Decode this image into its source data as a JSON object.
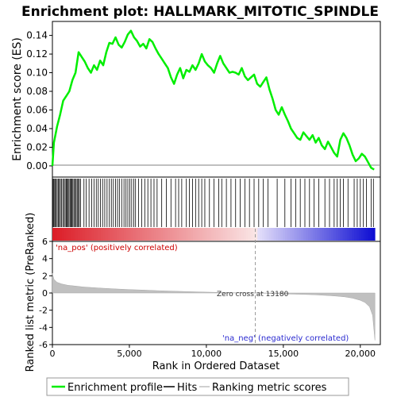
{
  "chart_data": [
    {
      "type": "line",
      "panel": "enrichment-profile",
      "title": "Enrichment plot: HALLMARK_MITOTIC_SPINDLE",
      "ylabel": "Enrichment score (ES)",
      "ylim": [
        -0.012,
        0.155
      ],
      "xlim": [
        0,
        21300
      ],
      "yticks": [
        "0.00",
        "0.02",
        "0.04",
        "0.06",
        "0.08",
        "0.10",
        "0.12",
        "0.14"
      ],
      "grid": false,
      "series": [
        {
          "name": "Enrichment profile",
          "color": "#00ee00",
          "x": [
            0,
            100,
            300,
            500,
            700,
            900,
            1100,
            1300,
            1500,
            1700,
            1900,
            2100,
            2300,
            2500,
            2700,
            2900,
            3100,
            3300,
            3500,
            3700,
            3900,
            4100,
            4300,
            4500,
            4700,
            4900,
            5100,
            5300,
            5500,
            5700,
            5900,
            6100,
            6300,
            6500,
            6700,
            6900,
            7100,
            7300,
            7500,
            7700,
            7900,
            8100,
            8300,
            8500,
            8700,
            8900,
            9100,
            9300,
            9500,
            9700,
            9900,
            10100,
            10300,
            10500,
            10700,
            10900,
            11100,
            11300,
            11500,
            11700,
            11900,
            12100,
            12300,
            12500,
            12700,
            12900,
            13100,
            13300,
            13500,
            13700,
            13900,
            14100,
            14300,
            14500,
            14700,
            14900,
            15100,
            15300,
            15500,
            15700,
            15900,
            16100,
            16300,
            16500,
            16700,
            16900,
            17100,
            17300,
            17500,
            17700,
            17900,
            18100,
            18300,
            18500,
            18700,
            18900,
            19100,
            19300,
            19500,
            19700,
            19900,
            20100,
            20300,
            20500,
            20700,
            20900
          ],
          "y": [
            0.0,
            0.025,
            0.042,
            0.055,
            0.07,
            0.075,
            0.08,
            0.092,
            0.1,
            0.122,
            0.117,
            0.112,
            0.105,
            0.1,
            0.108,
            0.103,
            0.113,
            0.108,
            0.122,
            0.132,
            0.131,
            0.138,
            0.13,
            0.127,
            0.133,
            0.141,
            0.145,
            0.138,
            0.134,
            0.128,
            0.131,
            0.126,
            0.136,
            0.133,
            0.126,
            0.12,
            0.115,
            0.11,
            0.105,
            0.095,
            0.088,
            0.098,
            0.105,
            0.094,
            0.103,
            0.101,
            0.108,
            0.103,
            0.11,
            0.12,
            0.112,
            0.108,
            0.105,
            0.1,
            0.11,
            0.118,
            0.11,
            0.105,
            0.1,
            0.101,
            0.1,
            0.098,
            0.105,
            0.096,
            0.092,
            0.095,
            0.098,
            0.088,
            0.085,
            0.09,
            0.095,
            0.082,
            0.072,
            0.06,
            0.055,
            0.063,
            0.055,
            0.048,
            0.04,
            0.035,
            0.03,
            0.028,
            0.036,
            0.032,
            0.028,
            0.033,
            0.025,
            0.03,
            0.022,
            0.018,
            0.026,
            0.02,
            0.014,
            0.01,
            0.028,
            0.035,
            0.03,
            0.022,
            0.012,
            0.005,
            0.008,
            0.013,
            0.01,
            0.004,
            -0.002,
            -0.004
          ]
        }
      ]
    },
    {
      "type": "scatter",
      "panel": "hits",
      "series": [
        {
          "name": "Hits",
          "color": "#000000",
          "x": [
            20,
            60,
            110,
            170,
            240,
            310,
            380,
            450,
            520,
            600,
            680,
            760,
            830,
            900,
            960,
            1020,
            1080,
            1150,
            1210,
            1270,
            1330,
            1400,
            1470,
            1540,
            1610,
            1680,
            1750,
            1820,
            2050,
            2200,
            2380,
            2550,
            2700,
            2850,
            2980,
            3120,
            3260,
            3400,
            3550,
            3700,
            3830,
            3960,
            4100,
            4230,
            4350,
            4500,
            4650,
            4780,
            4900,
            5030,
            5150,
            5280,
            5400,
            5600,
            5800,
            6000,
            6200,
            6400,
            6600,
            6800,
            7100,
            7400,
            7700,
            8000,
            8200,
            8400,
            8700,
            8900,
            9100,
            9300,
            9500,
            9700,
            9900,
            10200,
            10500,
            10800,
            11000,
            11300,
            11600,
            11900,
            12200,
            12500,
            12800,
            13100,
            13400,
            13700,
            14000,
            14600,
            15100,
            15500,
            15800,
            16100,
            16400,
            16700,
            17000,
            17300,
            17700,
            18000,
            18300,
            18500,
            18700,
            18900,
            19200,
            19600,
            19800,
            20000,
            20200,
            20400,
            20700,
            20850
          ]
        }
      ]
    },
    {
      "type": "area",
      "panel": "ranked-list-metric",
      "ylabel": "Ranked list metric (PreRanked)",
      "xlabel": "Rank in Ordered Dataset",
      "xlim": [
        0,
        21300
      ],
      "ylim": [
        -6,
        6
      ],
      "xticks": [
        "0",
        "5,000",
        "10,000",
        "15,000",
        "20,000"
      ],
      "yticks": [
        "6",
        "4",
        "2",
        "0",
        "-2",
        "-4",
        "-6"
      ],
      "annotations": [
        "'na_pos' (positively correlated)",
        "'na_neg' (negatively correlated)",
        "Zero cross at 13180"
      ],
      "zero_cross": 13180,
      "series": [
        {
          "name": "Ranking metric scores",
          "color": "#c0c0c0",
          "x": [
            0,
            100,
            300,
            600,
            1000,
            1500,
            2000,
            3000,
            4000,
            5000,
            6000,
            7000,
            8000,
            9000,
            10000,
            11000,
            12000,
            13180,
            14000,
            15000,
            16000,
            17000,
            18000,
            18500,
            19000,
            19500,
            20000,
            20300,
            20600,
            20800,
            20950
          ],
          "y": [
            2.3,
            1.6,
            1.25,
            1.05,
            0.9,
            0.8,
            0.7,
            0.58,
            0.48,
            0.4,
            0.33,
            0.26,
            0.2,
            0.15,
            0.1,
            0.06,
            0.03,
            0.0,
            -0.05,
            -0.1,
            -0.15,
            -0.2,
            -0.3,
            -0.37,
            -0.45,
            -0.6,
            -0.85,
            -1.1,
            -1.6,
            -2.6,
            -5.5
          ]
        }
      ]
    }
  ],
  "legend": {
    "items": [
      {
        "label": "Enrichment profile",
        "color": "#00ee00"
      },
      {
        "label": "Hits",
        "color": "#000000"
      },
      {
        "label": "Ranking metric scores",
        "color": "#c0c0c0"
      }
    ]
  }
}
